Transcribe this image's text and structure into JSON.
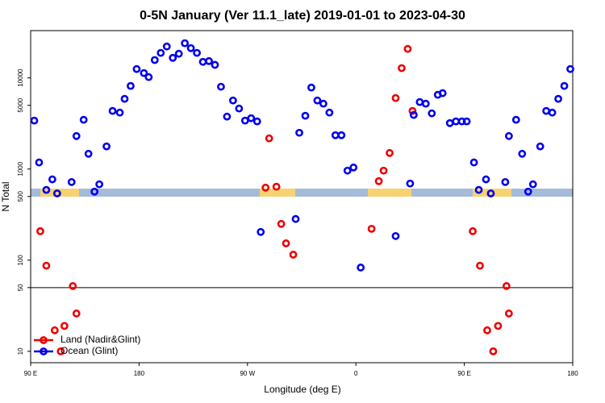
{
  "chart_data": {
    "type": "scatter",
    "title": "0-5N January (Ver 11.1_late)   2019-01-01 to 2023-04-30",
    "x_label": "Longitude (deg E)",
    "y_label": "N Total",
    "log_y": true,
    "xlim": [
      90,
      540
    ],
    "ylim": [
      7.5,
      33000
    ],
    "xticks": [
      {
        "value": 90,
        "label": "90 E"
      },
      180,
      {
        "value": 270,
        "label": "90 W"
      },
      {
        "value": 360,
        "label": "0"
      },
      {
        "value": 450,
        "label": "90 E"
      },
      {
        "value": 540,
        "label": "180"
      }
    ],
    "yticks": [
      10,
      50,
      100,
      500,
      1000,
      5000,
      10000
    ],
    "hline": 50,
    "legend": "bottom-left",
    "series": [
      {
        "name": "Land (Nadir&Glint)",
        "color": "#ee0000",
        "x": [
          98,
          103,
          110,
          115,
          118,
          125,
          128,
          285,
          288,
          294,
          298,
          302,
          308,
          373,
          379,
          383,
          388,
          393,
          398,
          403,
          407,
          457,
          463,
          469,
          474,
          478,
          485,
          487
        ],
        "values": [
          208,
          87,
          17,
          10,
          19,
          52,
          26,
          625,
          2170,
          640,
          250,
          153,
          115,
          221,
          736,
          960,
          1500,
          6010,
          12800,
          20800,
          4340,
          208,
          87,
          17,
          10,
          19,
          52,
          26
        ]
      },
      {
        "name": "Ocean (Glint)",
        "color": "#0000ee",
        "x": [
          93,
          97,
          103,
          108,
          112,
          124,
          128,
          134,
          138,
          143,
          147,
          153,
          158,
          164,
          168,
          173,
          178,
          184,
          188,
          193,
          198,
          203,
          208,
          213,
          218,
          223,
          228,
          233,
          238,
          243,
          248,
          253,
          258,
          263,
          268,
          273,
          278,
          281,
          310,
          313,
          318,
          323,
          328,
          333,
          338,
          343,
          348,
          353,
          358,
          364,
          393,
          405,
          408,
          413,
          418,
          423,
          428,
          432,
          438,
          443,
          448,
          452,
          458,
          462,
          468,
          472,
          484,
          487,
          493,
          498,
          503,
          507,
          513,
          518,
          523,
          528,
          533,
          538
        ],
        "values": [
          3400,
          1180,
          590,
          770,
          540,
          720,
          2300,
          3470,
          1470,
          565,
          680,
          1770,
          4340,
          4160,
          5890,
          8160,
          12500,
          11300,
          10200,
          15700,
          18800,
          22100,
          16600,
          18400,
          24000,
          21200,
          18800,
          15000,
          15300,
          13900,
          8000,
          3760,
          5650,
          4610,
          3400,
          3610,
          3330,
          204,
          283,
          2500,
          3840,
          7830,
          5650,
          5210,
          4160,
          2350,
          2350,
          960,
          1040,
          83,
          184,
          693,
          3920,
          5430,
          5210,
          4080,
          6520,
          6800,
          3190,
          3330,
          3330,
          3330,
          1180,
          590,
          770,
          540,
          720,
          2300,
          3470,
          1470,
          565,
          680,
          1770,
          4340,
          4160,
          5890,
          8160,
          12500
        ]
      }
    ]
  }
}
